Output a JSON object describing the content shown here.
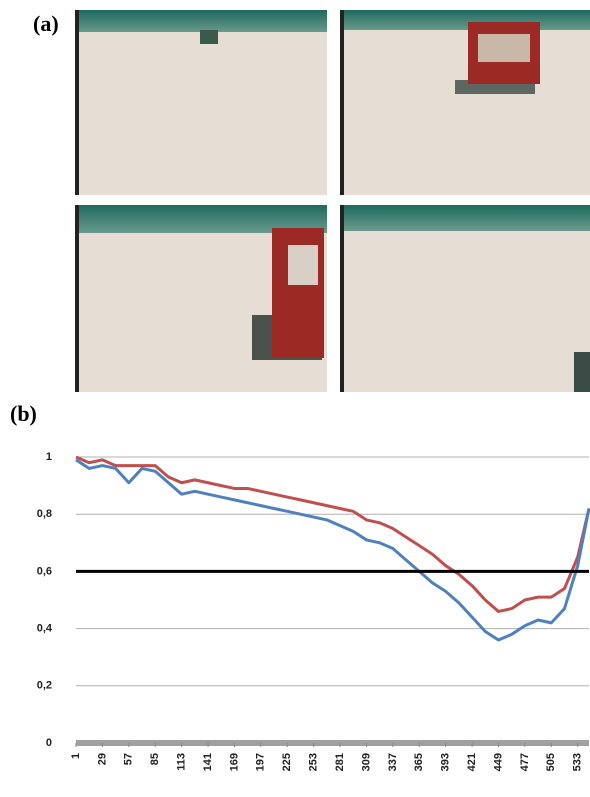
{
  "figure": {
    "panel_a": "(a)",
    "panel_b": "(b)"
  },
  "chart_data": {
    "type": "line",
    "x": [
      1,
      15,
      29,
      43,
      57,
      71,
      85,
      99,
      113,
      127,
      141,
      155,
      169,
      183,
      197,
      211,
      225,
      239,
      253,
      267,
      281,
      295,
      309,
      323,
      337,
      351,
      365,
      379,
      393,
      407,
      421,
      435,
      449,
      463,
      477,
      491,
      505,
      519,
      533,
      545
    ],
    "series": [
      {
        "color": "#c0504d",
        "values": [
          1.0,
          0.98,
          0.99,
          0.97,
          0.97,
          0.97,
          0.97,
          0.93,
          0.91,
          0.92,
          0.91,
          0.9,
          0.89,
          0.89,
          0.88,
          0.87,
          0.86,
          0.85,
          0.84,
          0.83,
          0.82,
          0.81,
          0.78,
          0.77,
          0.75,
          0.72,
          0.69,
          0.66,
          0.62,
          0.59,
          0.55,
          0.5,
          0.46,
          0.47,
          0.5,
          0.51,
          0.51,
          0.54,
          0.65,
          0.82
        ]
      },
      {
        "color": "#4f81bd",
        "values": [
          0.99,
          0.96,
          0.97,
          0.96,
          0.91,
          0.96,
          0.95,
          0.91,
          0.87,
          0.88,
          0.87,
          0.86,
          0.85,
          0.84,
          0.83,
          0.82,
          0.81,
          0.8,
          0.79,
          0.78,
          0.76,
          0.74,
          0.71,
          0.7,
          0.68,
          0.64,
          0.6,
          0.56,
          0.53,
          0.49,
          0.44,
          0.39,
          0.36,
          0.38,
          0.41,
          0.43,
          0.42,
          0.47,
          0.62,
          0.82
        ]
      }
    ],
    "xlim": [
      1,
      545
    ],
    "xticks": [
      1,
      29,
      57,
      85,
      113,
      141,
      169,
      197,
      225,
      253,
      281,
      309,
      337,
      365,
      393,
      421,
      449,
      477,
      505,
      533
    ],
    "ylim": [
      0,
      1
    ],
    "yticks": [
      0,
      {
        "value": 0.2,
        "label": "0,2"
      },
      {
        "value": 0.4,
        "label": "0,4"
      },
      {
        "value": 0.6,
        "label": "0,6"
      },
      {
        "value": 0.8,
        "label": "0,8"
      },
      1
    ],
    "grid": true,
    "reference_line": 0.6
  }
}
